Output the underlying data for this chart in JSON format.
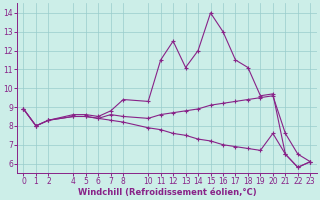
{
  "title": "",
  "xlabel": "Windchill (Refroidissement éolien,°C)",
  "ylabel": "",
  "bg_color": "#cceee8",
  "line_color": "#882288",
  "xlim": [
    -0.5,
    23.5
  ],
  "ylim": [
    5.5,
    14.5
  ],
  "xticks": [
    0,
    1,
    2,
    4,
    5,
    6,
    7,
    8,
    10,
    11,
    12,
    13,
    14,
    15,
    16,
    17,
    18,
    19,
    20,
    21,
    22,
    23
  ],
  "yticks": [
    6,
    7,
    8,
    9,
    10,
    11,
    12,
    13,
    14
  ],
  "line1": {
    "x": [
      0,
      1,
      2,
      4,
      5,
      6,
      7,
      8,
      10,
      11,
      12,
      13,
      14,
      15,
      16,
      17,
      18,
      19,
      20,
      21,
      22,
      23
    ],
    "y": [
      8.9,
      8.0,
      8.3,
      8.6,
      8.6,
      8.5,
      8.8,
      9.4,
      9.3,
      11.5,
      12.5,
      11.1,
      12.0,
      14.0,
      13.0,
      11.5,
      11.1,
      9.6,
      9.7,
      6.5,
      5.8,
      6.1
    ]
  },
  "line2": {
    "x": [
      0,
      1,
      2,
      4,
      5,
      6,
      7,
      8,
      10,
      11,
      12,
      13,
      14,
      15,
      16,
      17,
      18,
      19,
      20,
      21,
      22,
      23
    ],
    "y": [
      8.9,
      8.0,
      8.3,
      8.5,
      8.5,
      8.4,
      8.6,
      8.5,
      8.4,
      8.6,
      8.7,
      8.8,
      8.9,
      9.1,
      9.2,
      9.3,
      9.4,
      9.5,
      9.6,
      7.6,
      6.5,
      6.1
    ]
  },
  "line3": {
    "x": [
      0,
      1,
      2,
      4,
      5,
      6,
      7,
      8,
      10,
      11,
      12,
      13,
      14,
      15,
      16,
      17,
      18,
      19,
      20,
      21,
      22,
      23
    ],
    "y": [
      8.9,
      8.0,
      8.3,
      8.5,
      8.5,
      8.4,
      8.3,
      8.2,
      7.9,
      7.8,
      7.6,
      7.5,
      7.3,
      7.2,
      7.0,
      6.9,
      6.8,
      6.7,
      7.6,
      6.5,
      5.8,
      6.1
    ]
  },
  "xlabel_fontsize": 6.0,
  "tick_fontsize": 5.5
}
